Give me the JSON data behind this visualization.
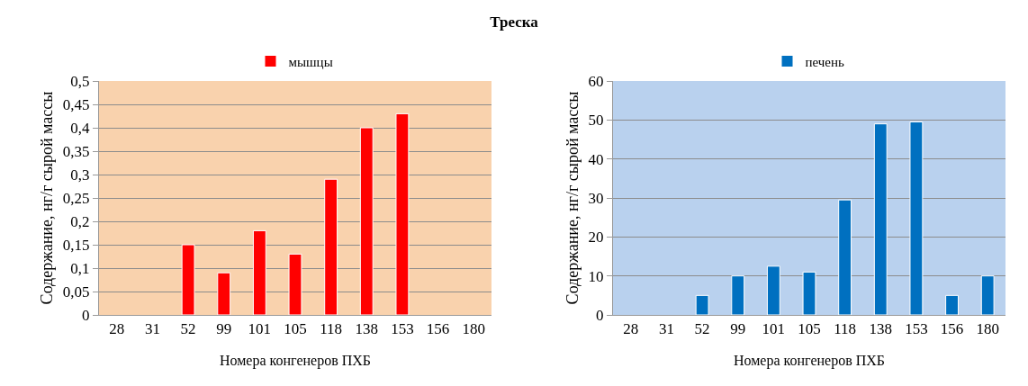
{
  "chart_data": [
    {
      "type": "bar",
      "title": "Треска",
      "xlabel": "Номера конгенеров ПХБ",
      "ylabel": "Содержание, нг/г сырой массы",
      "categories": [
        "28",
        "31",
        "52",
        "99",
        "101",
        "105",
        "118",
        "138",
        "153",
        "156",
        "180"
      ],
      "series": [
        {
          "name": "мышцы",
          "color": "#ff0000",
          "values": [
            0,
            0,
            0.15,
            0.09,
            0.18,
            0.13,
            0.29,
            0.4,
            0.43,
            0,
            0
          ]
        }
      ],
      "ylim": [
        0,
        0.5
      ],
      "yticks": [
        0,
        {
          "value": 0.05,
          "label": "0,05"
        },
        {
          "value": 0.1,
          "label": "0,1"
        },
        {
          "value": 0.15,
          "label": "0,15"
        },
        {
          "value": 0.2,
          "label": "0,2"
        },
        {
          "value": 0.25,
          "label": "0,25"
        },
        {
          "value": 0.3,
          "label": "0,3"
        },
        {
          "value": 0.35,
          "label": "0,35"
        },
        {
          "value": 0.4,
          "label": "0,4"
        },
        {
          "value": 0.45,
          "label": "0,45"
        },
        {
          "value": 0.5,
          "label": "0,5"
        }
      ],
      "grid": "y",
      "legend": "top"
    },
    {
      "type": "bar",
      "xlabel": "Номера конгенеров ПХБ",
      "ylabel": "Содержание, нг/г сырой массы",
      "categories": [
        "28",
        "31",
        "52",
        "99",
        "101",
        "105",
        "118",
        "138",
        "153",
        "156",
        "180"
      ],
      "series": [
        {
          "name": "печень",
          "color": "#0070c0",
          "values": [
            0,
            0,
            5,
            10,
            12.5,
            11,
            29.5,
            49,
            49.5,
            5,
            10
          ]
        }
      ],
      "ylim": [
        0,
        60
      ],
      "yticks": [
        0,
        10,
        20,
        30,
        40,
        50,
        60
      ],
      "grid": "y",
      "legend": "top"
    }
  ]
}
